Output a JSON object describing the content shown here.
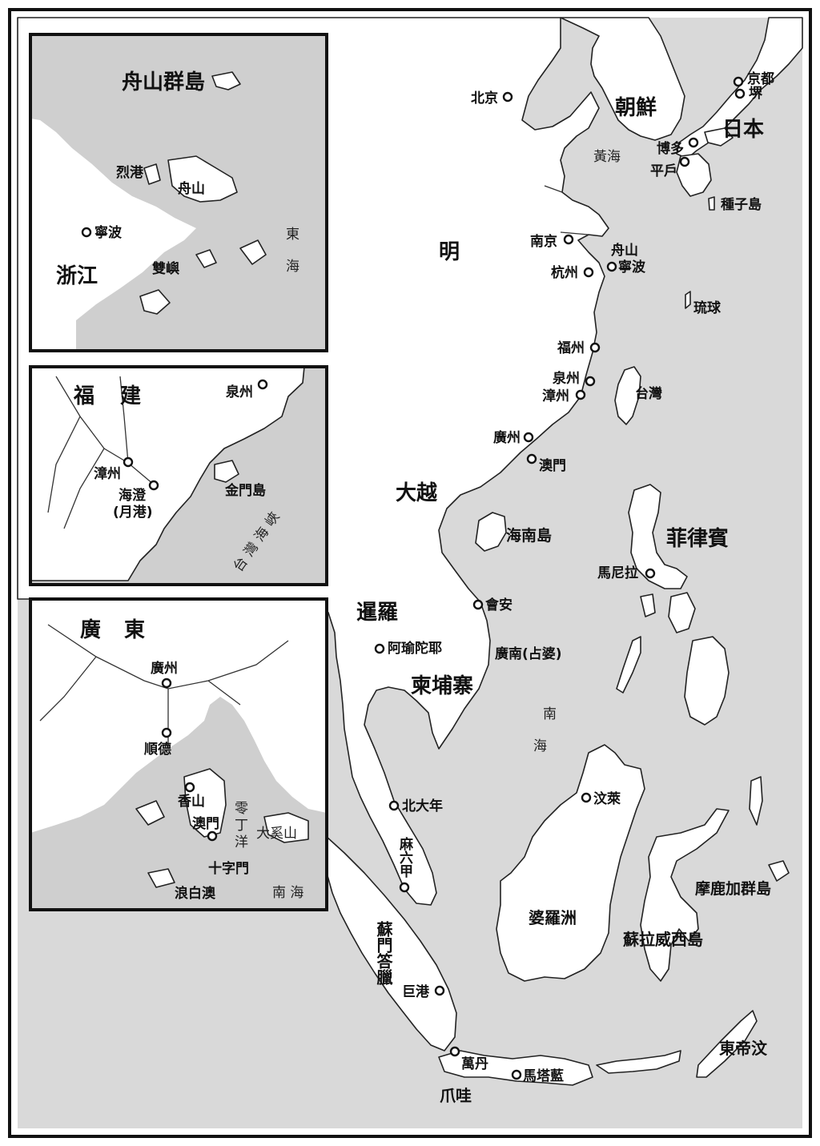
{
  "main": {
    "regions": {
      "joseon": "朝鮮",
      "japan": "日本",
      "ming": "明",
      "daiviet": "大越",
      "siam": "暹羅",
      "cambodia": "柬埔寨",
      "philippines": "菲律賓",
      "borneo": "婆羅洲",
      "moluccas": "摩鹿加群島",
      "sulawesi": "蘇拉威西島",
      "timor": "東帝汶",
      "java": "爪哇",
      "sumatra": "蘇門答臘",
      "malaya_malacca": "麻六甲",
      "hainan": "海南島",
      "taiwan": "台灣",
      "ryukyu": "琉球",
      "tanegashima": "種子島"
    },
    "seas": {
      "yellow_sea": "黃海",
      "south_sea_1": "南",
      "south_sea_2": "海"
    },
    "cities": {
      "beijing": "北京",
      "kyoto": "京都",
      "sakai": "堺",
      "hakata": "博多",
      "hirado": "平戶",
      "nanjing": "南京",
      "zhoushan": "舟山",
      "ningbo": "寧波",
      "hangzhou": "杭州",
      "fuzhou": "福州",
      "quanzhou": "泉州",
      "zhangzhou": "漳州",
      "guangzhou": "廣州",
      "macau": "澳門",
      "manila": "馬尼拉",
      "hoian": "會安",
      "champa": "廣南(占婆)",
      "ayutthaya": "阿瑜陀耶",
      "patani": "北大年",
      "brunei": "汶萊",
      "palembang": "巨港",
      "banten": "萬丹",
      "mataram": "馬塔藍"
    }
  },
  "inset_zhoushan": {
    "title": "舟山群島",
    "province": "浙江",
    "liegang": "烈港",
    "zhoushan": "舟山",
    "ningbo": "寧波",
    "shuangyu": "雙嶼",
    "sea_1": "東",
    "sea_2": "海"
  },
  "inset_fujian": {
    "title_1": "福",
    "title_2": "建",
    "quanzhou": "泉州",
    "zhangzhou": "漳州",
    "haicheng": "海澄",
    "yuegang": "(月港)",
    "kinmen": "金門島",
    "strait": "台灣海峽"
  },
  "inset_guangdong": {
    "title_1": "廣",
    "title_2": "東",
    "guangzhou": "廣州",
    "shunde": "順德",
    "xiangshan": "香山",
    "macau": "澳門",
    "lingding_1": "零",
    "lingding_2": "丁",
    "lingding_3": "洋",
    "daxishan": "大奚山",
    "shizimen": "十字門",
    "langbaiao": "浪白澳",
    "south_sea": "南 海"
  },
  "colors": {
    "water": "#d9d9d9",
    "land": "#ffffff",
    "border": "#111111"
  }
}
